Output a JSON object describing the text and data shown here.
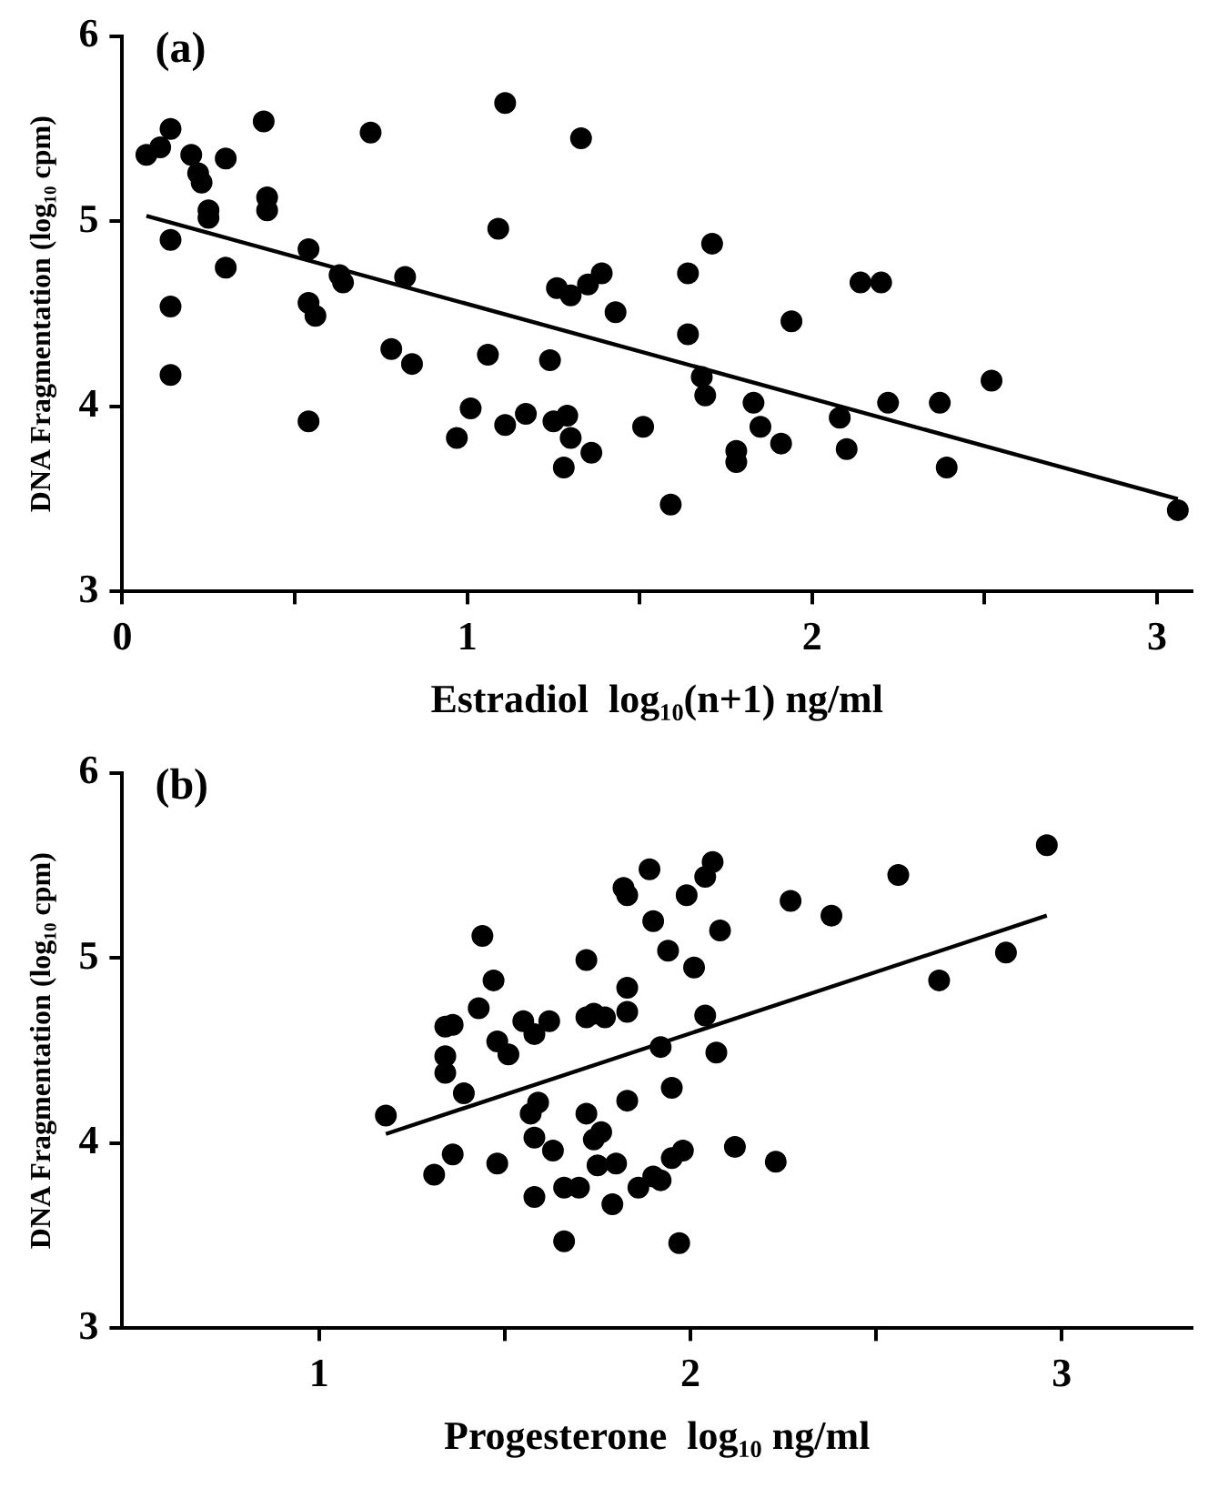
{
  "chart_data": [
    {
      "type": "scatter",
      "title": "(a)",
      "xlabel": "Estradiol  log₁₀(n+1) ng/ml",
      "ylabel": "DNA Fragmentation (log₁₀ cpm)",
      "xlim": [
        0,
        3.1
      ],
      "xticks": [
        0,
        {
          "value": 0.5,
          "label": null
        },
        1,
        {
          "value": 1.5,
          "label": null
        },
        2,
        {
          "value": 2.5,
          "label": null
        },
        3
      ],
      "ylim": [
        3,
        6
      ],
      "yticks": [
        3,
        4,
        5,
        6
      ],
      "grid": false,
      "legend": false,
      "series": [
        {
          "type": "scatter",
          "marker": "circle",
          "color": "#000000",
          "x": [
            0.07,
            0.11,
            0.14,
            0.2,
            0.22,
            0.23,
            0.3,
            0.41,
            0.25,
            0.25,
            0.42,
            0.42,
            0.14,
            0.3,
            0.14,
            0.14,
            0.54,
            0.54,
            0.56,
            0.54,
            0.63,
            0.64,
            0.72,
            0.78,
            0.82,
            0.84,
            0.97,
            1.01,
            1.06,
            1.09,
            1.11,
            1.11,
            1.17,
            1.24,
            1.25,
            1.26,
            1.29,
            1.28,
            1.3,
            1.3,
            1.33,
            1.36,
            1.35,
            1.39,
            1.43,
            1.51,
            1.59,
            1.64,
            1.64,
            1.71,
            1.68,
            1.69,
            1.78,
            1.78,
            1.83,
            1.85,
            1.91,
            1.94,
            2.08,
            2.1,
            2.14,
            2.2,
            2.22,
            2.37,
            2.39,
            2.52,
            3.06
          ],
          "values": [
            5.36,
            5.4,
            5.5,
            5.36,
            5.26,
            5.21,
            5.34,
            5.54,
            5.06,
            5.02,
            5.13,
            5.06,
            4.9,
            4.75,
            4.54,
            4.17,
            4.85,
            4.56,
            4.49,
            3.92,
            4.71,
            4.67,
            5.48,
            4.31,
            4.7,
            4.23,
            3.83,
            3.99,
            4.28,
            4.96,
            5.64,
            3.9,
            3.96,
            4.25,
            3.92,
            4.64,
            3.95,
            3.67,
            3.83,
            4.6,
            5.45,
            3.75,
            4.66,
            4.72,
            4.51,
            3.89,
            3.47,
            4.72,
            4.39,
            4.88,
            4.16,
            4.06,
            3.76,
            3.7,
            4.02,
            3.89,
            3.8,
            4.46,
            3.94,
            3.77,
            4.67,
            4.67,
            4.02,
            4.02,
            3.67,
            4.14,
            3.44
          ]
        },
        {
          "type": "line",
          "marker": "none",
          "color": "#000000",
          "x": [
            0.07,
            3.06
          ],
          "values": [
            5.03,
            3.5
          ]
        }
      ]
    },
    {
      "type": "scatter",
      "title": "(b)",
      "xlabel": "Progesterone  log₁₀ ng/ml",
      "ylabel": "DNA Fragmentation (log₁₀ cpm)",
      "xlim": [
        0.47,
        3.35
      ],
      "xticks": [
        1,
        {
          "value": 1.5,
          "label": null
        },
        2,
        {
          "value": 2.5,
          "label": null
        },
        3
      ],
      "ylim": [
        3,
        6
      ],
      "yticks": [
        3,
        4,
        5,
        6
      ],
      "grid": false,
      "legend": false,
      "series": [
        {
          "type": "scatter",
          "marker": "circle",
          "color": "#000000",
          "x": [
            1.18,
            1.31,
            1.36,
            1.34,
            1.34,
            1.34,
            1.36,
            1.39,
            1.43,
            1.44,
            1.47,
            1.48,
            1.51,
            1.48,
            1.55,
            1.58,
            1.62,
            1.57,
            1.59,
            1.58,
            1.63,
            1.58,
            1.66,
            1.7,
            1.66,
            1.72,
            1.72,
            1.74,
            1.77,
            1.72,
            1.74,
            1.76,
            1.75,
            1.8,
            1.79,
            1.83,
            1.83,
            1.83,
            1.83,
            1.82,
            1.89,
            1.9,
            1.86,
            1.9,
            2.06,
            2.04,
            1.99,
            2.08,
            1.94,
            2.01,
            2.27,
            2.38,
            2.56,
            2.96,
            2.85,
            2.67,
            2.04,
            1.92,
            2.07,
            1.95,
            2.12,
            2.23,
            1.95,
            1.98,
            1.92,
            1.97
          ],
          "values": [
            4.15,
            3.83,
            3.94,
            4.38,
            4.47,
            4.63,
            4.64,
            4.27,
            4.73,
            5.12,
            4.88,
            4.55,
            4.48,
            3.89,
            4.66,
            4.59,
            4.66,
            4.16,
            4.22,
            4.03,
            3.96,
            3.71,
            3.76,
            3.76,
            3.47,
            4.99,
            4.68,
            4.7,
            4.68,
            4.16,
            4.02,
            4.06,
            3.88,
            3.89,
            3.67,
            4.84,
            4.71,
            4.23,
            5.34,
            5.38,
            5.48,
            5.2,
            3.76,
            3.82,
            5.52,
            5.44,
            5.34,
            5.15,
            5.04,
            4.95,
            5.31,
            5.23,
            5.45,
            5.61,
            5.03,
            4.88,
            4.69,
            4.52,
            4.49,
            4.3,
            3.98,
            3.9,
            3.92,
            3.96,
            3.8,
            3.46
          ]
        },
        {
          "type": "line",
          "marker": "none",
          "color": "#000000",
          "x": [
            1.18,
            2.96
          ],
          "values": [
            4.05,
            5.23
          ]
        }
      ]
    }
  ]
}
